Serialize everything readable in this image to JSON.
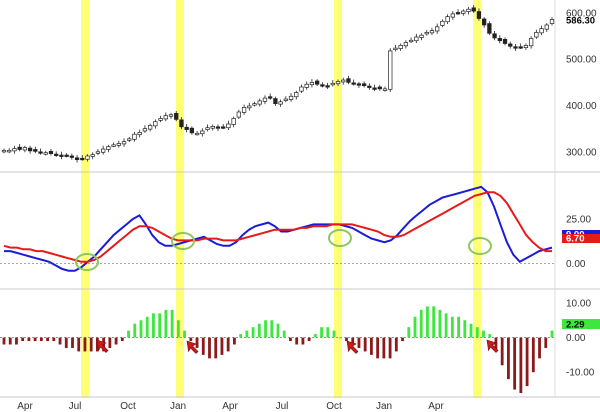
{
  "chart_data": [
    {
      "type": "candlestick",
      "panel": "price",
      "last_value": "586.30",
      "y_ticks": [
        "600.00",
        "500.00",
        "400.00",
        "300.00"
      ],
      "ylim": [
        265,
        615
      ],
      "series": [
        {
          "name": "",
          "values": [
            303,
            303,
            307,
            305,
            309,
            302,
            301,
            299,
            298,
            296,
            294,
            290,
            292,
            288,
            283,
            285,
            291,
            294,
            300,
            306,
            311,
            315,
            318,
            322,
            328,
            338,
            342,
            350,
            357,
            365,
            372,
            378,
            380,
            370,
            354,
            348,
            341,
            340,
            345,
            352,
            355,
            351,
            353,
            360,
            372,
            386,
            396,
            399,
            404,
            410,
            416,
            416,
            404,
            408,
            414,
            420,
            428,
            440,
            446,
            450,
            446,
            444,
            442,
            448,
            452,
            455,
            450,
            448,
            444,
            443,
            439,
            437,
            436,
            436,
            518,
            524,
            530,
            536,
            541,
            548,
            552,
            558,
            562,
            570,
            582,
            592,
            598,
            600,
            604,
            608,
            604,
            588,
            574,
            556,
            546,
            540,
            534,
            528,
            524,
            526,
            530,
            545,
            558,
            566,
            574,
            586
          ]
        }
      ]
    },
    {
      "type": "line",
      "panel": "macd",
      "y_ticks": [
        "25.00",
        "0.00"
      ],
      "ylim": [
        -12,
        48
      ],
      "tags": [
        "9.00",
        "6.70"
      ],
      "series": [
        {
          "name": "",
          "color": "#1c1cd6",
          "values": [
            7,
            7,
            6,
            5,
            4,
            3,
            2,
            1,
            -1,
            -3,
            -4,
            -4,
            -2,
            1,
            4,
            8,
            12,
            16,
            19,
            22,
            25,
            27,
            22,
            16,
            12,
            10,
            10,
            11,
            12,
            13,
            14,
            15,
            13,
            11,
            10,
            10,
            12,
            16,
            19,
            21,
            22,
            23,
            21,
            18,
            18,
            19,
            20,
            21,
            22,
            22,
            22,
            22,
            22,
            21,
            20,
            18,
            16,
            14,
            13,
            12,
            13,
            16,
            20,
            24,
            27,
            30,
            33,
            35,
            37,
            38,
            39,
            40,
            41,
            42,
            43,
            40,
            32,
            22,
            12,
            5,
            1,
            3,
            5,
            7,
            8,
            9
          ]
        },
        {
          "name": "",
          "color": "#e61a1a",
          "values": [
            10,
            9,
            9,
            8,
            8,
            7,
            7,
            6,
            5,
            4,
            3,
            2,
            1,
            1,
            2,
            4,
            7,
            10,
            13,
            16,
            19,
            21,
            21,
            20,
            18,
            16,
            14,
            13,
            13,
            13,
            13,
            14,
            14,
            14,
            13,
            13,
            13,
            14,
            15,
            16,
            17,
            18,
            19,
            19,
            19,
            19,
            20,
            20,
            21,
            21,
            21,
            22,
            22,
            22,
            22,
            21,
            20,
            19,
            18,
            16,
            15,
            15,
            16,
            18,
            20,
            22,
            24,
            26,
            28,
            30,
            32,
            34,
            36,
            38,
            39,
            40,
            40,
            38,
            34,
            28,
            22,
            16,
            12,
            9,
            7,
            7
          ]
        }
      ]
    },
    {
      "type": "bar",
      "panel": "histogram",
      "last_value": "2.29",
      "y_ticks": [
        "10.00",
        "0.00",
        "-10.00"
      ],
      "ylim": [
        -16,
        12
      ],
      "positive_color": "#3ee63e",
      "negative_color": "#8b1a1a",
      "series": [
        {
          "name": "",
          "values": [
            -2,
            -2,
            -2,
            -1,
            -1,
            -1,
            -1,
            -1,
            -1,
            -2,
            -3,
            -3,
            -4,
            -4,
            -4,
            -4,
            -4,
            -3,
            -2,
            -1,
            2,
            4,
            5,
            6,
            7,
            7,
            8,
            8,
            5,
            2,
            -1,
            -3,
            -5,
            -6,
            -6,
            -5,
            -4,
            -2,
            1,
            2,
            3,
            4,
            5,
            5,
            4,
            2,
            -1,
            -2,
            -2,
            -1,
            1,
            3,
            3,
            2,
            0,
            -1,
            -2,
            -3,
            -4,
            -5,
            -6,
            -6,
            -6,
            -4,
            -1,
            3,
            6,
            8,
            9,
            9,
            8,
            7,
            6,
            6,
            5,
            4,
            3,
            2,
            1,
            -4,
            -8,
            -12,
            -15,
            -16,
            -14,
            -10,
            -6,
            -3,
            2
          ]
        }
      ]
    },
    {
      "type": "axis",
      "x_ticks": [
        "Apr",
        "Jul",
        "Oct",
        "Jan",
        "Apr",
        "Jul",
        "Oct",
        "Jan",
        "Apr"
      ]
    }
  ],
  "colors": {
    "highlight": "#ffff66",
    "arrow": "#cc1a1a",
    "circle": "#8cc85a"
  }
}
